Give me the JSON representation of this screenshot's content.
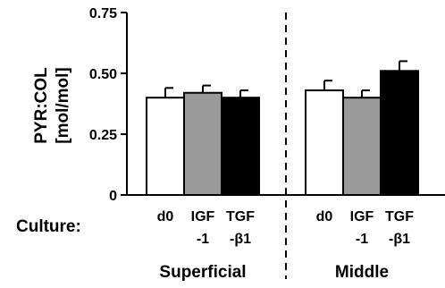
{
  "chart_data": {
    "type": "bar",
    "ylabel_line1": "PYR:COL",
    "ylabel_line2": "[mol/mol]",
    "ylim": [
      0,
      0.75
    ],
    "yticks": [
      "0",
      "0.25",
      "0.50",
      "0.75"
    ],
    "ytick_values": [
      0,
      0.25,
      0.5,
      0.75
    ],
    "row_label": "Culture:",
    "fill_colors": {
      "d0": "#ffffff",
      "IGF-1": "#9a9a9a",
      "TGF-β1": "#000000"
    },
    "groups": [
      {
        "name": "Superficial",
        "bars": [
          {
            "category": "d0",
            "label_line1": "d0",
            "label_line2": "",
            "value": 0.4,
            "error": 0.04
          },
          {
            "category": "IGF-1",
            "label_line1": "IGF",
            "label_line2": "-1",
            "value": 0.42,
            "error": 0.03
          },
          {
            "category": "TGF-β1",
            "label_line1": "TGF",
            "label_line2": "-β1",
            "value": 0.4,
            "error": 0.03
          }
        ]
      },
      {
        "name": "Middle",
        "bars": [
          {
            "category": "d0",
            "label_line1": "d0",
            "label_line2": "",
            "value": 0.43,
            "error": 0.04
          },
          {
            "category": "IGF-1",
            "label_line1": "IGF",
            "label_line2": "-1",
            "value": 0.4,
            "error": 0.03
          },
          {
            "category": "TGF-β1",
            "label_line1": "TGF",
            "label_line2": "-β1",
            "value": 0.51,
            "error": 0.04
          }
        ]
      }
    ]
  }
}
